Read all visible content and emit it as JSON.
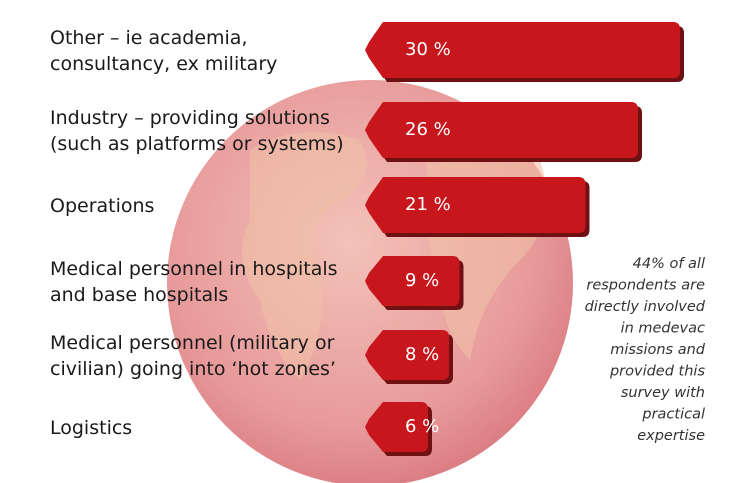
{
  "chart_data": {
    "type": "bar",
    "categories": [
      [
        "Other – ie academia,",
        "consultancy, ex military"
      ],
      [
        "Industry – providing solutions",
        "(such as platforms or systems)"
      ],
      [
        "Operations"
      ],
      [
        "Medical personnel in hospitals",
        "and base hospitals"
      ],
      [
        "Medical personnel (military or",
        "civilian) going into ‘hot zones’"
      ],
      [
        "Logistics"
      ]
    ],
    "values": [
      30,
      26,
      21,
      9,
      8,
      6
    ],
    "value_labels": [
      "30 %",
      "26 %",
      "21 %",
      "9 %",
      "8 %",
      "6 %"
    ],
    "color": "#c8161d",
    "annotation": [
      "44% of all",
      "respondents are",
      "directly involved",
      "in medevac",
      "missions and",
      "provided this",
      "survey with",
      "practical",
      "expertise"
    ]
  }
}
